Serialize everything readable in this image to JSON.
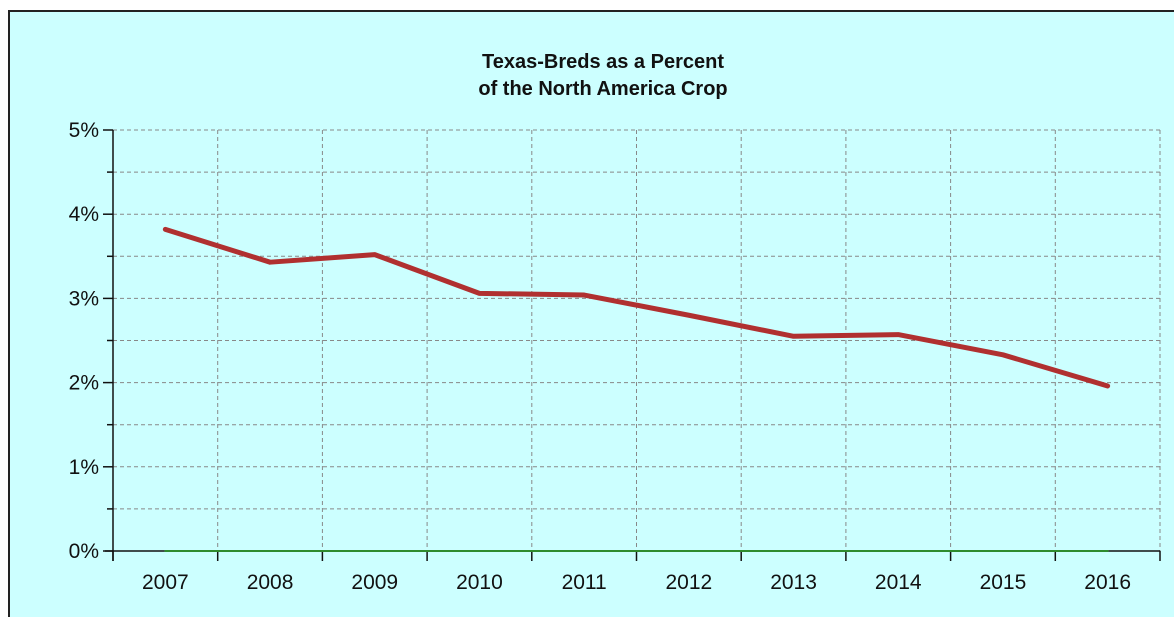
{
  "chart_data": {
    "type": "line",
    "title": "Texas-Breds as a Percent\nof the North America Crop",
    "title_lines": [
      "Texas-Breds as a Percent",
      "of the North America Crop"
    ],
    "xlabel": "",
    "ylabel": "",
    "x": [
      "2007",
      "2008",
      "2009",
      "2010",
      "2011",
      "2012",
      "2013",
      "2014",
      "2015",
      "2016"
    ],
    "ylim": [
      0,
      5
    ],
    "y_ticks": [
      "0%",
      "1%",
      "2%",
      "3%",
      "4%",
      "5%"
    ],
    "grid": true,
    "background_color": "#ccffff",
    "series": [
      {
        "color": "#b03030",
        "values": [
          3.82,
          3.43,
          3.52,
          3.06,
          3.04,
          2.8,
          2.55,
          2.57,
          2.33,
          1.96
        ]
      },
      {
        "color": "#2e8b2e",
        "values": [
          0,
          0,
          0,
          0,
          0,
          0,
          0,
          0,
          0,
          0
        ]
      }
    ]
  }
}
